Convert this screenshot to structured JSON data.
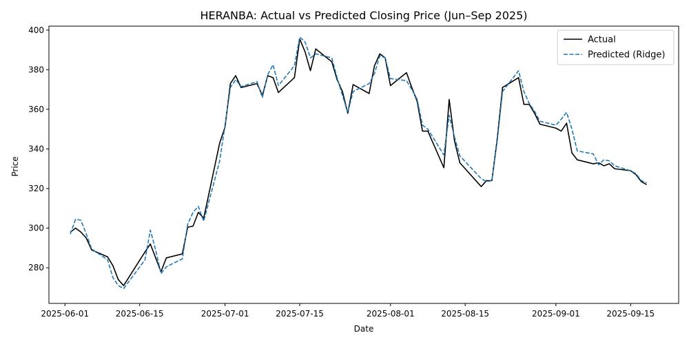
{
  "chart_data": {
    "type": "line",
    "title": "HERANBA: Actual vs Predicted Closing Price (Jun–Sep 2025)",
    "xlabel": "Date",
    "ylabel": "Price",
    "xlim": [
      "2025-05-29",
      "2025-09-24"
    ],
    "ylim": [
      262,
      402
    ],
    "xticks": [
      "2025-06-01",
      "2025-06-15",
      "2025-07-01",
      "2025-07-15",
      "2025-08-01",
      "2025-08-15",
      "2025-09-01",
      "2025-09-15"
    ],
    "yticks": [
      280,
      300,
      320,
      340,
      360,
      380,
      400
    ],
    "grid": false,
    "legend_position": "top-right",
    "series": [
      {
        "name": "Actual",
        "color": "#000000",
        "style": "solid",
        "points": [
          [
            "2025-06-02",
            298
          ],
          [
            "2025-06-03",
            300
          ],
          [
            "2025-06-04",
            298
          ],
          [
            "2025-06-05",
            295
          ],
          [
            "2025-06-06",
            289
          ],
          [
            "2025-06-09",
            285.5
          ],
          [
            "2025-06-10",
            281
          ],
          [
            "2025-06-11",
            274
          ],
          [
            "2025-06-12",
            271
          ],
          [
            "2025-06-16",
            288
          ],
          [
            "2025-06-17",
            292
          ],
          [
            "2025-06-18",
            285
          ],
          [
            "2025-06-19",
            278
          ],
          [
            "2025-06-20",
            285
          ],
          [
            "2025-06-23",
            287
          ],
          [
            "2025-06-24",
            300.5
          ],
          [
            "2025-06-25",
            301
          ],
          [
            "2025-06-26",
            308
          ],
          [
            "2025-06-27",
            305
          ],
          [
            "2025-06-30",
            343
          ],
          [
            "2025-07-01",
            351
          ],
          [
            "2025-07-02",
            373
          ],
          [
            "2025-07-03",
            377
          ],
          [
            "2025-07-04",
            371
          ],
          [
            "2025-07-07",
            373
          ],
          [
            "2025-07-08",
            367
          ],
          [
            "2025-07-09",
            377
          ],
          [
            "2025-07-10",
            376
          ],
          [
            "2025-07-11",
            368.5
          ],
          [
            "2025-07-14",
            376
          ],
          [
            "2025-07-15",
            395.5
          ],
          [
            "2025-07-16",
            389
          ],
          [
            "2025-07-17",
            379.5
          ],
          [
            "2025-07-18",
            390.5
          ],
          [
            "2025-07-21",
            384
          ],
          [
            "2025-07-22",
            375
          ],
          [
            "2025-07-23",
            369
          ],
          [
            "2025-07-24",
            358
          ],
          [
            "2025-07-25",
            372.5
          ],
          [
            "2025-07-28",
            368
          ],
          [
            "2025-07-29",
            382
          ],
          [
            "2025-07-30",
            388
          ],
          [
            "2025-07-31",
            386
          ],
          [
            "2025-08-01",
            372
          ],
          [
            "2025-08-04",
            378.5
          ],
          [
            "2025-08-05",
            371
          ],
          [
            "2025-08-06",
            364
          ],
          [
            "2025-08-07",
            349
          ],
          [
            "2025-08-08",
            349
          ],
          [
            "2025-08-11",
            330.5
          ],
          [
            "2025-08-12",
            365
          ],
          [
            "2025-08-13",
            344
          ],
          [
            "2025-08-14",
            333
          ],
          [
            "2025-08-18",
            321
          ],
          [
            "2025-08-19",
            324
          ],
          [
            "2025-08-20",
            324
          ],
          [
            "2025-08-21",
            345
          ],
          [
            "2025-08-22",
            371
          ],
          [
            "2025-08-25",
            376
          ],
          [
            "2025-08-26",
            362.5
          ],
          [
            "2025-08-27",
            362.5
          ],
          [
            "2025-08-28",
            358
          ],
          [
            "2025-08-29",
            352.5
          ],
          [
            "2025-09-01",
            350.5
          ],
          [
            "2025-09-02",
            349
          ],
          [
            "2025-09-03",
            353
          ],
          [
            "2025-09-04",
            338
          ],
          [
            "2025-09-05",
            334.5
          ],
          [
            "2025-09-08",
            332.5
          ],
          [
            "2025-09-09",
            333
          ],
          [
            "2025-09-10",
            331.5
          ],
          [
            "2025-09-11",
            332.5
          ],
          [
            "2025-09-12",
            330
          ],
          [
            "2025-09-15",
            329
          ],
          [
            "2025-09-16",
            327
          ],
          [
            "2025-09-17",
            323.5
          ],
          [
            "2025-09-18",
            322
          ]
        ]
      },
      {
        "name": "Predicted (Ridge)",
        "color": "#1f77b4",
        "style": "dashed",
        "points": [
          [
            "2025-06-02",
            297
          ],
          [
            "2025-06-03",
            304.5
          ],
          [
            "2025-06-04",
            304
          ],
          [
            "2025-06-05",
            297
          ],
          [
            "2025-06-06",
            289.5
          ],
          [
            "2025-06-09",
            284
          ],
          [
            "2025-06-10",
            275
          ],
          [
            "2025-06-11",
            271
          ],
          [
            "2025-06-12",
            269.5
          ],
          [
            "2025-06-16",
            284
          ],
          [
            "2025-06-17",
            299
          ],
          [
            "2025-06-18",
            289
          ],
          [
            "2025-06-19",
            277
          ],
          [
            "2025-06-20",
            280.5
          ],
          [
            "2025-06-23",
            284.5
          ],
          [
            "2025-06-24",
            302
          ],
          [
            "2025-06-25",
            308
          ],
          [
            "2025-06-26",
            311
          ],
          [
            "2025-06-27",
            303.5
          ],
          [
            "2025-06-30",
            334
          ],
          [
            "2025-07-01",
            352
          ],
          [
            "2025-07-02",
            371
          ],
          [
            "2025-07-03",
            375
          ],
          [
            "2025-07-04",
            371.5
          ],
          [
            "2025-07-07",
            374
          ],
          [
            "2025-07-08",
            366
          ],
          [
            "2025-07-09",
            377.5
          ],
          [
            "2025-07-10",
            382.5
          ],
          [
            "2025-07-11",
            372
          ],
          [
            "2025-07-14",
            382
          ],
          [
            "2025-07-15",
            396.5
          ],
          [
            "2025-07-16",
            394
          ],
          [
            "2025-07-17",
            386
          ],
          [
            "2025-07-18",
            388
          ],
          [
            "2025-07-21",
            386
          ],
          [
            "2025-07-22",
            376
          ],
          [
            "2025-07-23",
            367
          ],
          [
            "2025-07-24",
            358.5
          ],
          [
            "2025-07-25",
            369
          ],
          [
            "2025-07-28",
            373
          ],
          [
            "2025-07-29",
            378
          ],
          [
            "2025-07-30",
            387
          ],
          [
            "2025-07-31",
            386
          ],
          [
            "2025-08-01",
            375.5
          ],
          [
            "2025-08-04",
            374.5
          ],
          [
            "2025-08-05",
            370
          ],
          [
            "2025-08-06",
            365
          ],
          [
            "2025-08-07",
            352
          ],
          [
            "2025-08-08",
            350
          ],
          [
            "2025-08-11",
            337
          ],
          [
            "2025-08-12",
            357
          ],
          [
            "2025-08-13",
            346
          ],
          [
            "2025-08-14",
            336.5
          ],
          [
            "2025-08-18",
            325
          ],
          [
            "2025-08-19",
            323.5
          ],
          [
            "2025-08-20",
            324
          ],
          [
            "2025-08-21",
            344
          ],
          [
            "2025-08-22",
            369
          ],
          [
            "2025-08-25",
            379.5
          ],
          [
            "2025-08-26",
            369
          ],
          [
            "2025-08-27",
            363
          ],
          [
            "2025-08-28",
            359
          ],
          [
            "2025-08-29",
            354
          ],
          [
            "2025-09-01",
            352
          ],
          [
            "2025-09-02",
            355
          ],
          [
            "2025-09-03",
            358.5
          ],
          [
            "2025-09-04",
            350
          ],
          [
            "2025-09-05",
            339
          ],
          [
            "2025-09-08",
            337.5
          ],
          [
            "2025-09-09",
            332
          ],
          [
            "2025-09-10",
            334.5
          ],
          [
            "2025-09-11",
            334
          ],
          [
            "2025-09-12",
            331.5
          ],
          [
            "2025-09-15",
            329
          ],
          [
            "2025-09-16",
            327.5
          ],
          [
            "2025-09-17",
            324
          ],
          [
            "2025-09-18",
            323
          ]
        ]
      }
    ]
  }
}
